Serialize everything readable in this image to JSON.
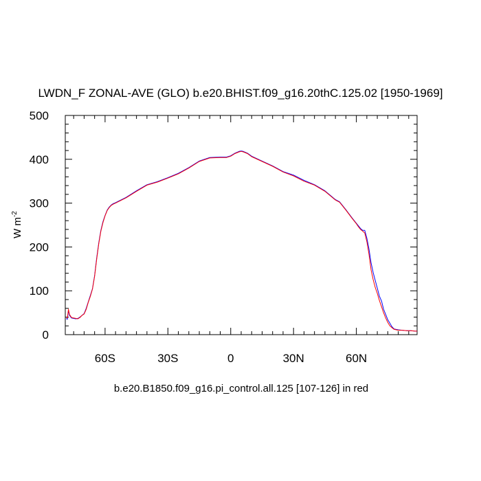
{
  "chart_data": {
    "type": "line",
    "title": "LWDN_F ZONAL-AVE (GLO) b.e20.BHIST.f09_g16.20thC.125.02 [1950-1969]",
    "ylabel_main": "W m",
    "ylabel_sup": "-2",
    "note": "b.e20.B1850.f09_g16.pi_control.all.125 [107-126] in red",
    "xlim": [
      -79,
      89
    ],
    "ylim": [
      0,
      500
    ],
    "x_ticks": [
      {
        "value": -60,
        "label": "60S"
      },
      {
        "value": -30,
        "label": "30S"
      },
      {
        "value": 0,
        "label": "0"
      },
      {
        "value": 30,
        "label": "30N"
      },
      {
        "value": 60,
        "label": "60N"
      }
    ],
    "y_ticks": [
      {
        "value": 0,
        "label": "0"
      },
      {
        "value": 100,
        "label": "100"
      },
      {
        "value": 200,
        "label": "200"
      },
      {
        "value": 300,
        "label": "300"
      },
      {
        "value": 400,
        "label": "400"
      },
      {
        "value": 500,
        "label": "500"
      }
    ],
    "series": [
      {
        "color": "#0000ff",
        "x": [
          -78.5,
          -78,
          -77.5,
          -77,
          -76,
          -75,
          -74,
          -73,
          -72,
          -71,
          -70,
          -69,
          -68,
          -67,
          -66,
          -65,
          -64,
          -63,
          -62,
          -61,
          -60,
          -59,
          -58,
          -57,
          -56,
          -55,
          -50,
          -45,
          -40,
          -35,
          -30,
          -25,
          -20,
          -15,
          -10,
          -5,
          -2,
          0,
          2,
          4,
          5,
          6,
          8,
          10,
          15,
          20,
          25,
          30,
          35,
          40,
          45,
          48,
          50,
          52,
          55,
          58,
          60,
          61,
          62,
          63,
          64,
          65,
          66,
          67,
          68,
          69,
          70,
          71,
          72,
          73,
          74,
          75,
          76,
          77,
          78,
          80,
          82,
          84,
          86,
          88,
          89
        ],
        "y": [
          37,
          35,
          55,
          44,
          38,
          37,
          36,
          37,
          40,
          44,
          48,
          60,
          75,
          90,
          105,
          135,
          175,
          210,
          238,
          258,
          272,
          284,
          291,
          296,
          299,
          301,
          313,
          328,
          342,
          349,
          358,
          368,
          381,
          396,
          404,
          405,
          405,
          408,
          414,
          418,
          419,
          418,
          414,
          407,
          396,
          385,
          372,
          364,
          352,
          342,
          328,
          316,
          308,
          303,
          285,
          266,
          254,
          248,
          242,
          238,
          238,
          220,
          196,
          164,
          142,
          124,
          106,
          88,
          77,
          58,
          46,
          34,
          26,
          18,
          13,
          11,
          10,
          9,
          9,
          8,
          8
        ]
      },
      {
        "color": "#ff0000",
        "x": [
          -78.5,
          -78,
          -77.5,
          -77,
          -76,
          -75,
          -74,
          -73,
          -72,
          -71,
          -70,
          -69,
          -68,
          -67,
          -66,
          -65,
          -64,
          -63,
          -62,
          -61,
          -60,
          -59,
          -58,
          -57,
          -56,
          -55,
          -50,
          -45,
          -40,
          -35,
          -30,
          -25,
          -20,
          -15,
          -10,
          -5,
          -2,
          0,
          2,
          4,
          5,
          6,
          8,
          10,
          15,
          20,
          25,
          30,
          35,
          40,
          45,
          48,
          50,
          52,
          55,
          58,
          60,
          61,
          62,
          63,
          64,
          65,
          66,
          67,
          68,
          69,
          70,
          71,
          72,
          73,
          74,
          75,
          76,
          77,
          78,
          80,
          82,
          84,
          86,
          88,
          89
        ],
        "y": [
          40,
          38,
          58,
          46,
          39,
          38,
          37,
          36,
          39,
          44,
          47,
          58,
          74,
          88,
          104,
          133,
          172,
          208,
          236,
          256,
          271,
          283,
          290,
          295,
          298,
          300,
          312,
          327,
          341,
          348,
          357,
          367,
          380,
          395,
          403,
          404,
          404,
          407,
          413,
          417,
          418,
          417,
          413,
          406,
          395,
          384,
          371,
          362,
          350,
          341,
          327,
          315,
          307,
          302,
          284,
          265,
          253,
          246,
          240,
          236,
          232,
          212,
          184,
          148,
          126,
          108,
          94,
          78,
          64,
          50,
          38,
          28,
          20,
          16,
          12,
          10,
          10,
          9,
          9,
          8,
          8
        ]
      }
    ]
  }
}
